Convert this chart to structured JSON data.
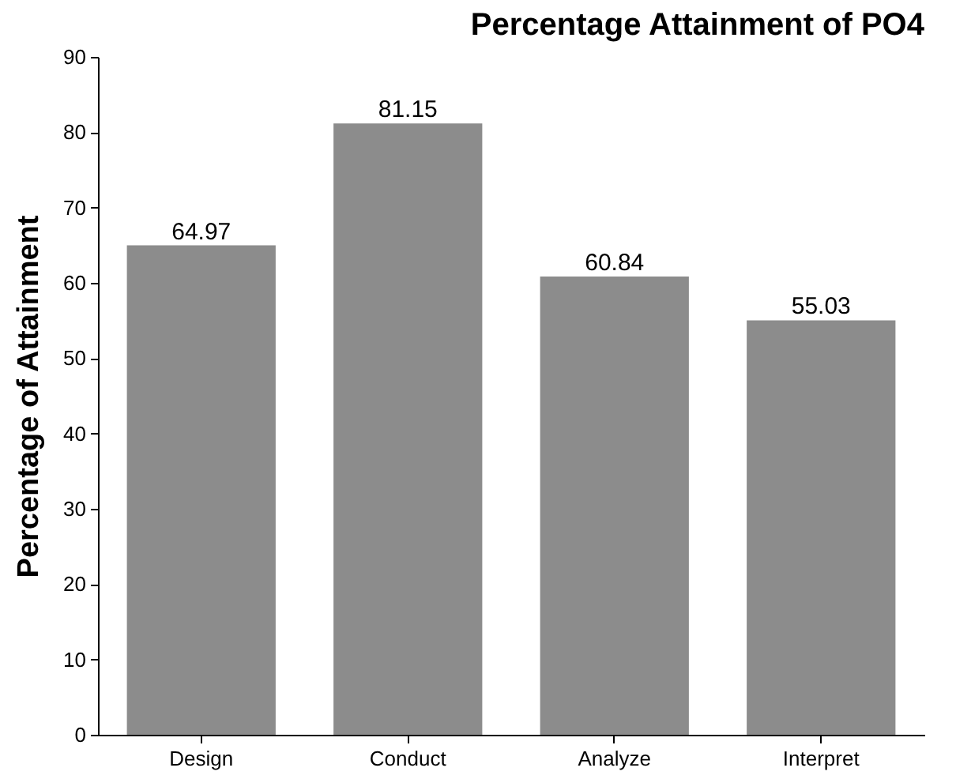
{
  "chart_data": {
    "type": "bar",
    "title": "Percentage Attainment of PO4",
    "ylabel": "Percentage of Attainment",
    "categories": [
      "Design",
      "Conduct",
      "Analyze",
      "Interpret"
    ],
    "values": [
      64.97,
      81.15,
      60.84,
      55.03
    ],
    "color": "#8c8c8c",
    "ylim": [
      0,
      90
    ],
    "yticks": [
      0,
      10,
      20,
      30,
      40,
      50,
      60,
      70,
      80,
      90
    ],
    "data_labels": true,
    "grid": false
  }
}
